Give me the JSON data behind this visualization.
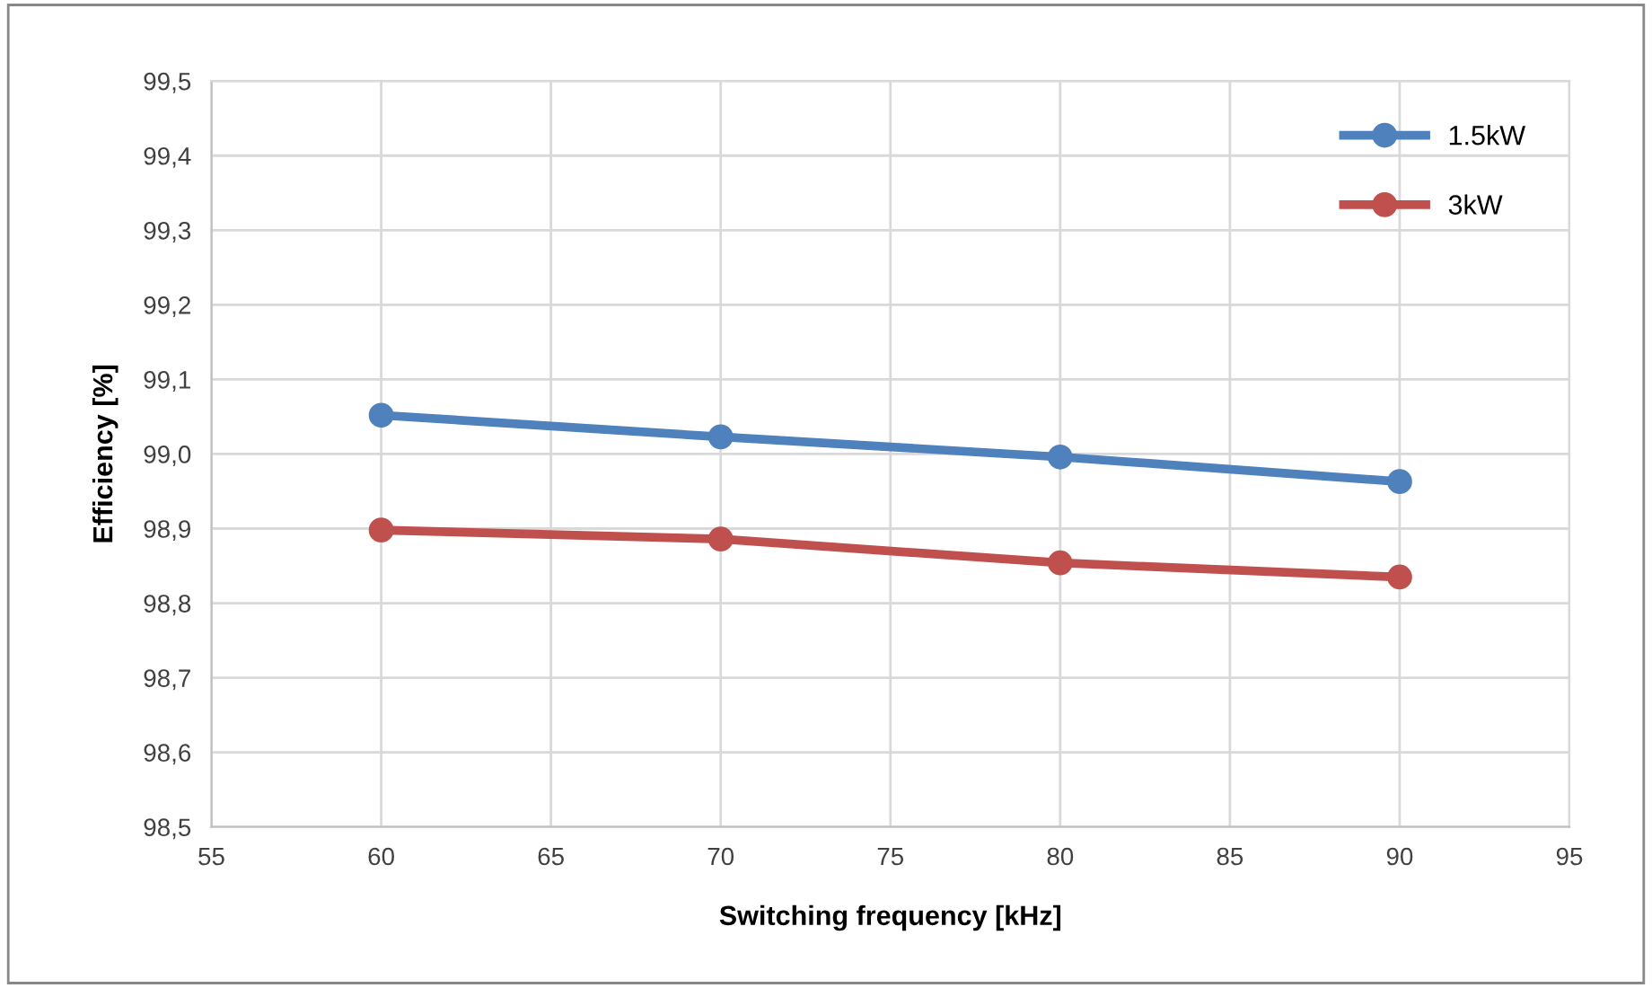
{
  "chart_data": {
    "type": "line",
    "xlabel": "Switching frequency [kHz]",
    "ylabel": "Efficiency [%]",
    "x": [
      60,
      70,
      80,
      90
    ],
    "series": [
      {
        "name": "1.5kW",
        "color": "#4f81bd",
        "values": [
          99.052,
          99.023,
          98.996,
          98.963
        ]
      },
      {
        "name": "3kW",
        "color": "#c0504d",
        "values": [
          98.898,
          98.886,
          98.854,
          98.835
        ]
      }
    ],
    "xlim": [
      55,
      95
    ],
    "xticks": [
      55,
      60,
      65,
      70,
      75,
      80,
      85,
      90,
      95
    ],
    "ylim": [
      98.5,
      99.5
    ],
    "yticks": [
      {
        "value": 98.5,
        "label": "98,5"
      },
      {
        "value": 98.6,
        "label": "98,6"
      },
      {
        "value": 98.7,
        "label": "98,7"
      },
      {
        "value": 98.8,
        "label": "98,8"
      },
      {
        "value": 98.9,
        "label": "98,9"
      },
      {
        "value": 99.0,
        "label": "99,0"
      },
      {
        "value": 99.1,
        "label": "99,1"
      },
      {
        "value": 99.2,
        "label": "99,2"
      },
      {
        "value": 99.3,
        "label": "99,3"
      },
      {
        "value": 99.4,
        "label": "99,4"
      },
      {
        "value": 99.5,
        "label": "99,5"
      }
    ],
    "grid": true,
    "legend": "top right",
    "marker": "circle",
    "line_style": "solid"
  }
}
